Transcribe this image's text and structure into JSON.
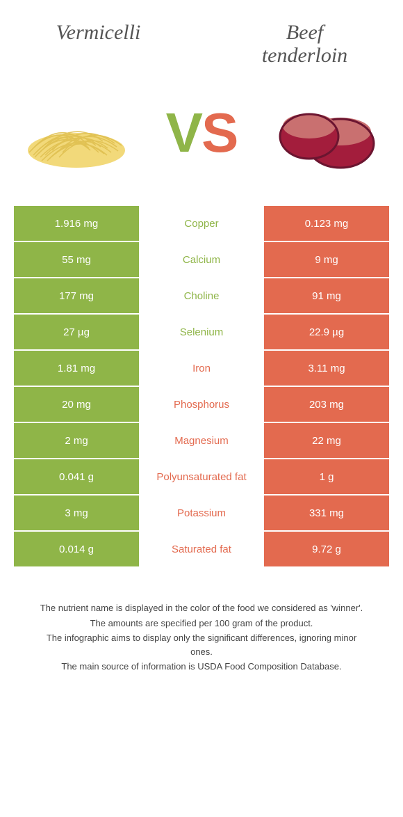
{
  "titles": {
    "left": "Vermicelli",
    "right_line1": "Beef",
    "right_line2": "tenderloin"
  },
  "vs": {
    "v": "V",
    "s": "S"
  },
  "colors": {
    "green": "#8fb548",
    "orange": "#e36a4f",
    "vermicelli_light": "#f2d97a",
    "vermicelli_dark": "#e0c050",
    "beef_fill": "#a31d3c",
    "beef_edge": "#6B1530",
    "beef_top": "#c97070"
  },
  "rows": [
    {
      "left": "1.916 mg",
      "label": "Copper",
      "right": "0.123 mg",
      "winner": "green"
    },
    {
      "left": "55 mg",
      "label": "Calcium",
      "right": "9 mg",
      "winner": "green"
    },
    {
      "left": "177 mg",
      "label": "Choline",
      "right": "91 mg",
      "winner": "green"
    },
    {
      "left": "27 µg",
      "label": "Selenium",
      "right": "22.9 µg",
      "winner": "green"
    },
    {
      "left": "1.81 mg",
      "label": "Iron",
      "right": "3.11 mg",
      "winner": "orange"
    },
    {
      "left": "20 mg",
      "label": "Phosphorus",
      "right": "203 mg",
      "winner": "orange"
    },
    {
      "left": "2 mg",
      "label": "Magnesium",
      "right": "22 mg",
      "winner": "orange"
    },
    {
      "left": "0.041 g",
      "label": "Polyunsaturated fat",
      "right": "1 g",
      "winner": "orange"
    },
    {
      "left": "3 mg",
      "label": "Potassium",
      "right": "331 mg",
      "winner": "orange"
    },
    {
      "left": "0.014 g",
      "label": "Saturated fat",
      "right": "9.72 g",
      "winner": "orange"
    }
  ],
  "footer": {
    "line1": "The nutrient name is displayed in the color of the food we considered as 'winner'.",
    "line2": "The amounts are specified per 100 gram of the product.",
    "line3": "The infographic aims to display only the significant differences, ignoring minor ones.",
    "line4": "The main source of information is USDA Food Composition Database."
  }
}
